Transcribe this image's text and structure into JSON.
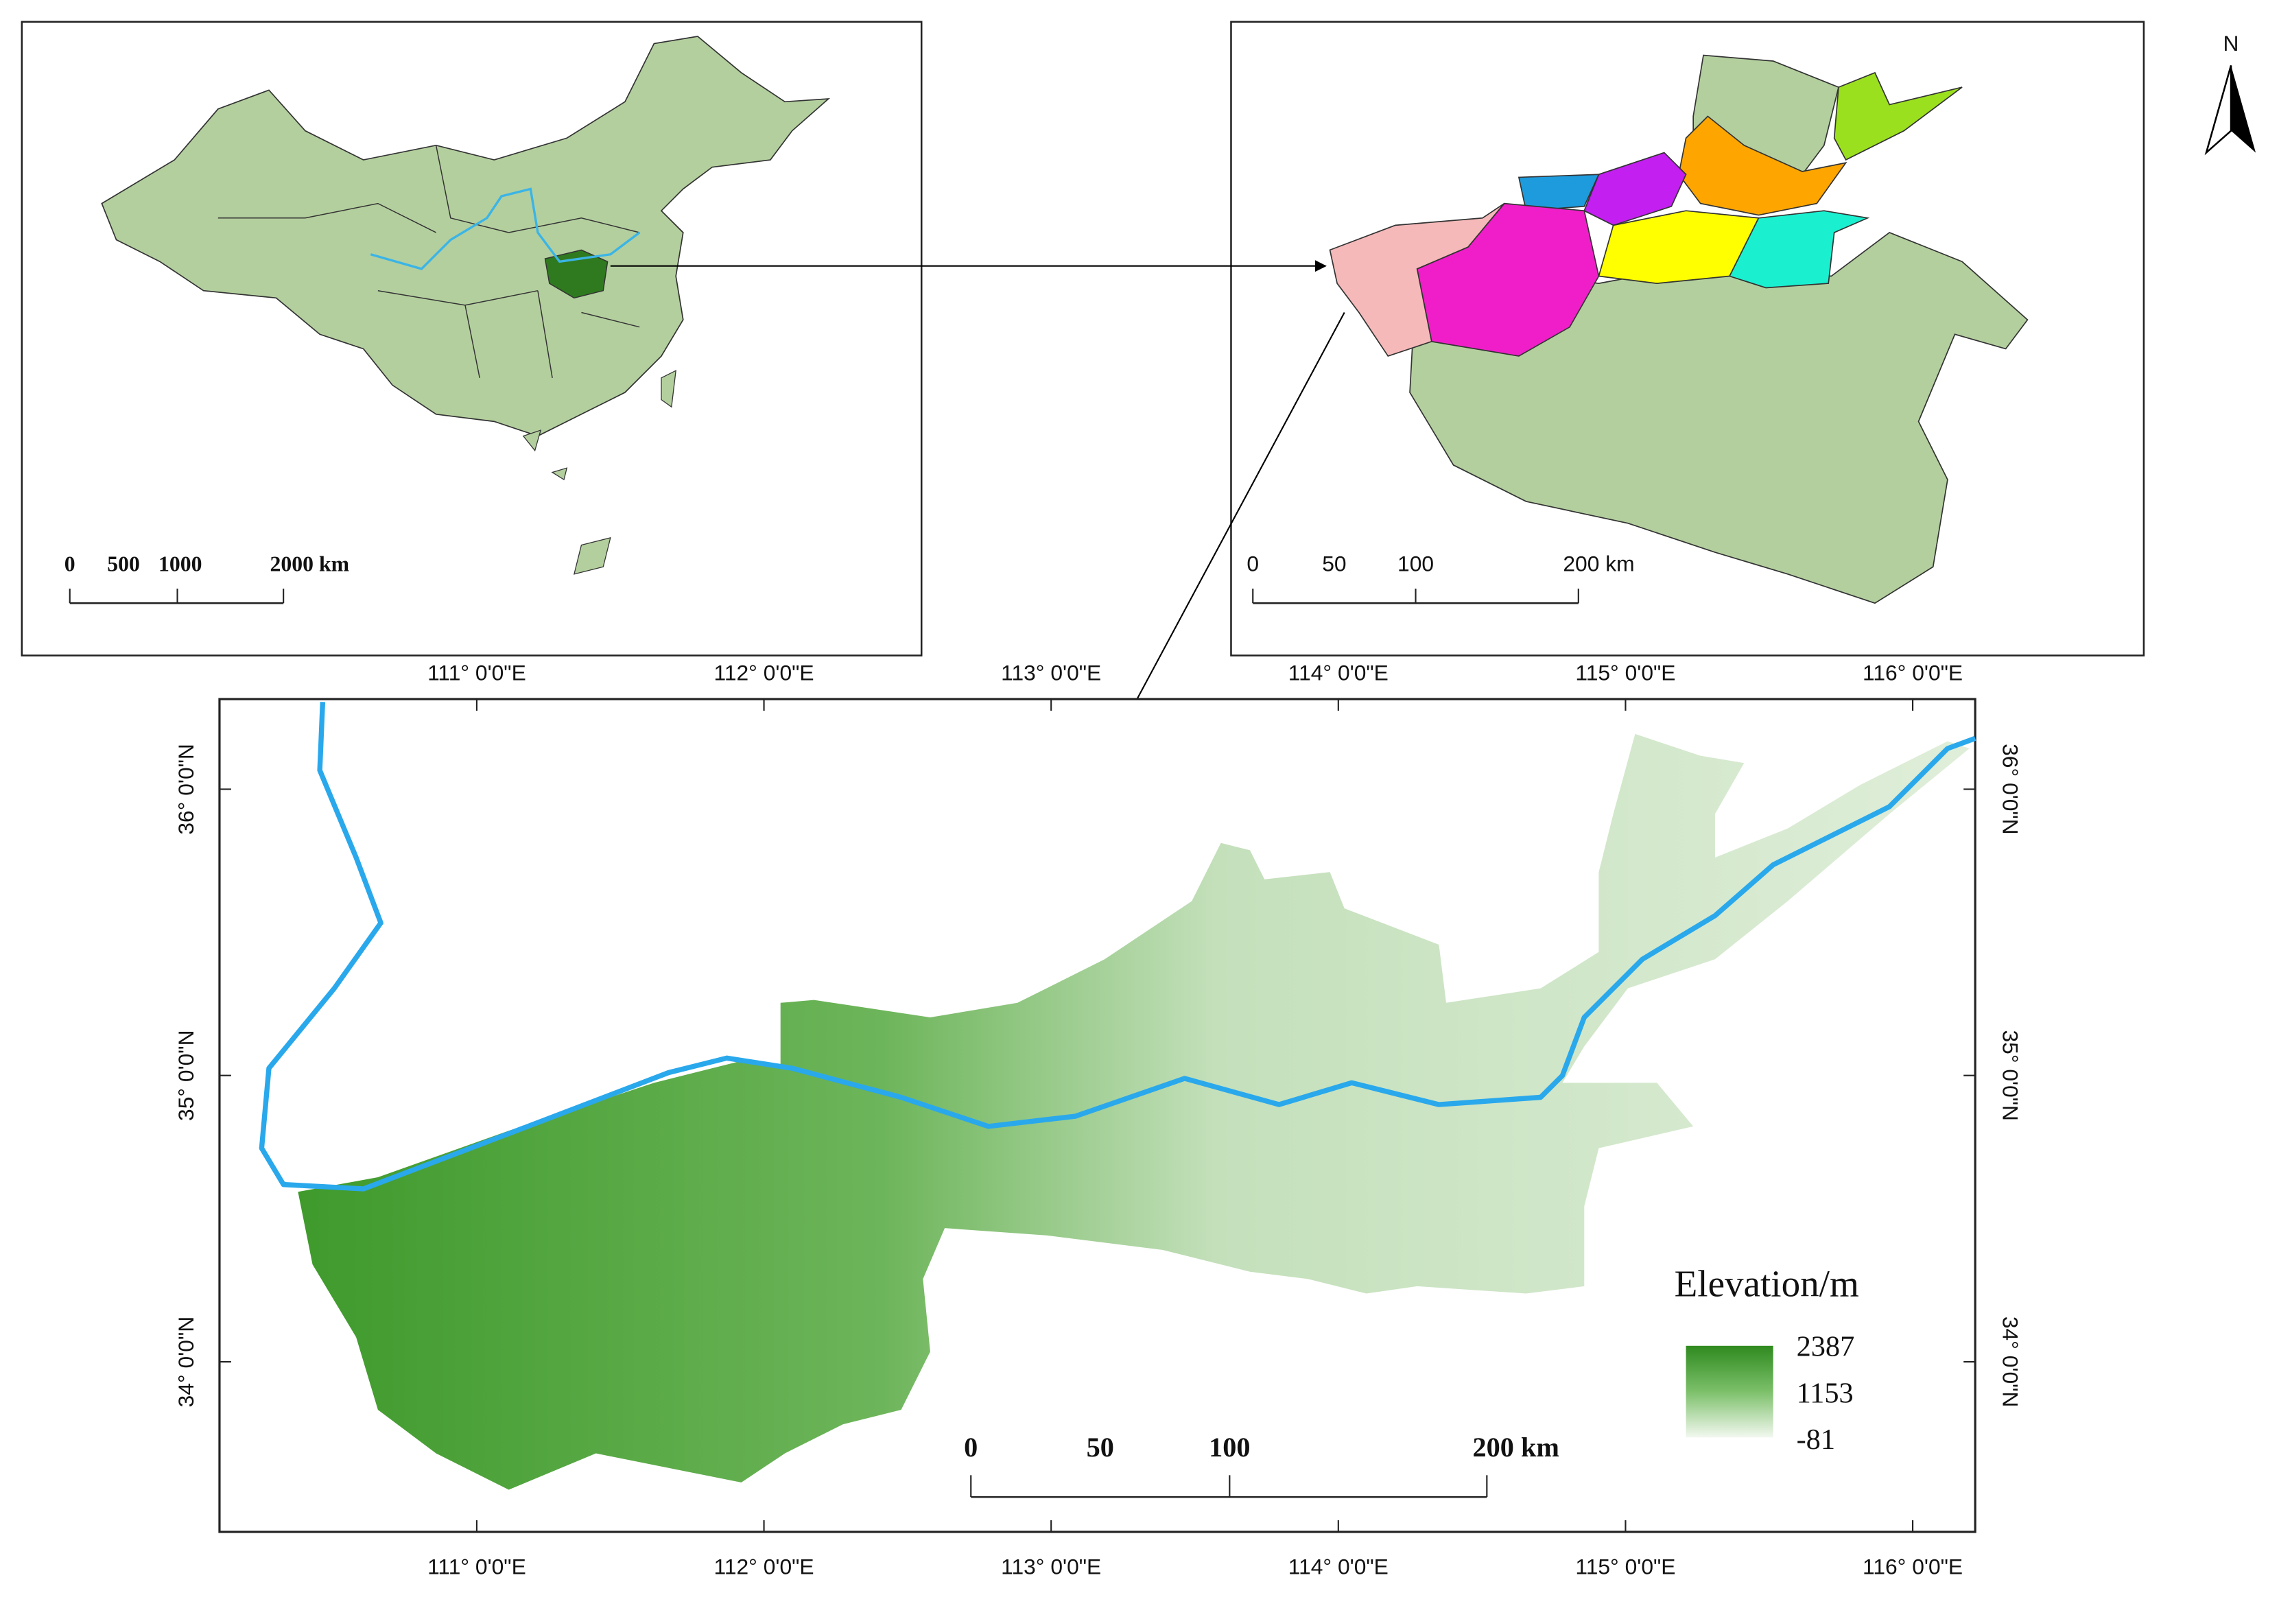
{
  "north_arrow": "N",
  "china_map": {
    "scale_labels": [
      "0",
      "500",
      "1000",
      "2000 km"
    ]
  },
  "province_map": {
    "scale_labels": [
      "0",
      "50",
      "100",
      "200 km"
    ]
  },
  "main_map": {
    "lon_labels": [
      "111° 0'0\"E",
      "112° 0'0\"E",
      "113° 0'0\"E",
      "114° 0'0\"E",
      "115° 0'0\"E",
      "116° 0'0\"E"
    ],
    "lat_labels": [
      "36° 0'0\"N",
      "35° 0'0\"N",
      "34° 0'0\"N"
    ],
    "scale_labels": [
      "0",
      "50",
      "100",
      "200 km"
    ],
    "legend": {
      "title": "Elevation/m",
      "max": 2387,
      "mid": 1153,
      "min": -81
    }
  }
}
